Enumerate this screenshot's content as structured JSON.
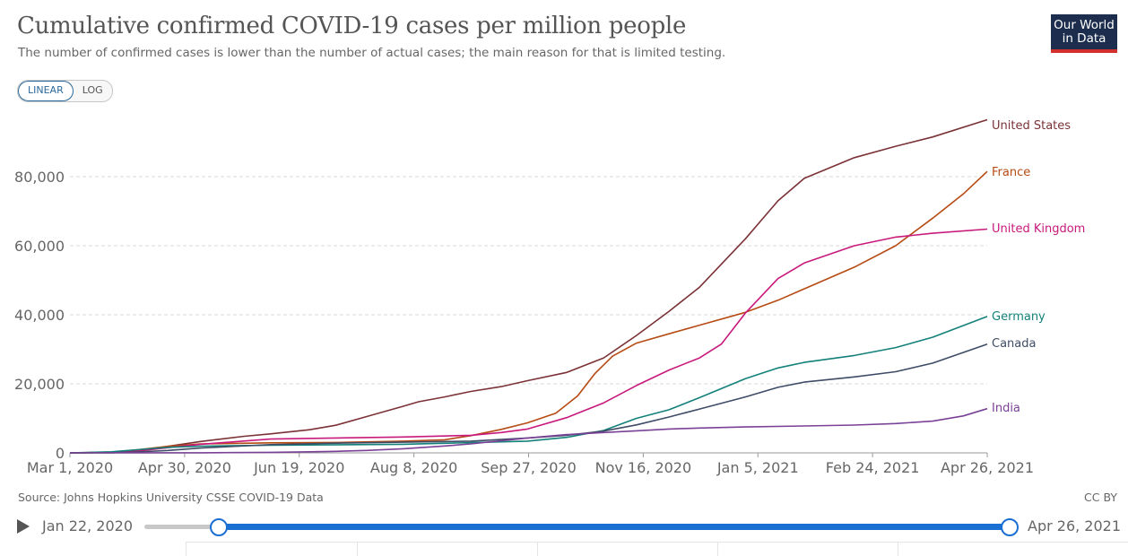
{
  "logo": {
    "line1": "Our World",
    "line2": "in Data"
  },
  "scale_toggle": {
    "linear_label": "LINEAR",
    "log_label": "LOG"
  },
  "source": "Source: Johns Hopkins University CSSE COVID-19 Data",
  "license": "CC BY",
  "timeline": {
    "start_label": "Jan 22, 2020",
    "end_label": "Apr 26, 2021"
  },
  "colors": {
    "United States": "#7b3236",
    "France": "#b64a13",
    "United Kingdom": "#c8197c",
    "Germany": "#13807a",
    "Canada": "#3e4c66",
    "India": "#7a4196",
    "grid": "#d9d9d9",
    "accent": "#1a6fd3"
  },
  "chart_data": {
    "type": "line",
    "title": "Cumulative confirmed COVID-19 cases per million people",
    "subtitle": "The number of confirmed cases is lower than the number of actual cases; the main reason for that is limited testing.",
    "x_tick_labels": [
      "Mar 1, 2020",
      "Apr 30, 2020",
      "Jun 19, 2020",
      "Aug 8, 2020",
      "Sep 27, 2020",
      "Nov 16, 2020",
      "Jan 5, 2021",
      "Feb 24, 2021",
      "Apr 26, 2021"
    ],
    "xlim": [
      "2020-03-01",
      "2021-04-26"
    ],
    "ylim": [
      0,
      100000
    ],
    "y_ticks": [
      0,
      20000,
      40000,
      60000,
      80000
    ],
    "y_tick_labels": [
      "0",
      "20,000",
      "40,000",
      "60,000",
      "80,000"
    ],
    "grid": true,
    "legend_placement": "right, labels at line ends",
    "series": [
      {
        "name": "United States",
        "x": [
          "2020-03-01",
          "2020-03-20",
          "2020-04-01",
          "2020-04-15",
          "2020-04-30",
          "2020-05-20",
          "2020-06-01",
          "2020-06-19",
          "2020-07-01",
          "2020-07-15",
          "2020-08-01",
          "2020-08-08",
          "2020-08-20",
          "2020-09-01",
          "2020-09-15",
          "2020-09-27",
          "2020-10-15",
          "2020-11-01",
          "2020-11-16",
          "2020-12-01",
          "2020-12-15",
          "2021-01-05",
          "2021-01-20",
          "2021-02-01",
          "2021-02-24",
          "2021-03-15",
          "2021-04-01",
          "2021-04-26"
        ],
        "y": [
          0,
          100,
          600,
          1900,
          3300,
          4800,
          5500,
          6700,
          8000,
          10500,
          13500,
          14800,
          16200,
          17800,
          19200,
          20900,
          23300,
          27500,
          34000,
          41000,
          48000,
          62000,
          73000,
          79500,
          85500,
          88800,
          91500,
          96500
        ]
      },
      {
        "name": "France",
        "x": [
          "2020-03-01",
          "2020-03-20",
          "2020-04-01",
          "2020-04-15",
          "2020-04-30",
          "2020-06-01",
          "2020-07-01",
          "2020-08-01",
          "2020-08-20",
          "2020-09-01",
          "2020-09-15",
          "2020-09-27",
          "2020-10-10",
          "2020-10-20",
          "2020-10-28",
          "2020-11-05",
          "2020-11-16",
          "2020-12-01",
          "2020-12-15",
          "2021-01-05",
          "2021-01-20",
          "2021-02-01",
          "2021-02-24",
          "2021-03-15",
          "2021-04-01",
          "2021-04-15",
          "2021-04-26"
        ],
        "y": [
          0,
          200,
          900,
          1900,
          2600,
          2900,
          3000,
          3400,
          3800,
          5000,
          6800,
          8700,
          11500,
          16500,
          23000,
          28000,
          31800,
          34500,
          37000,
          40700,
          44200,
          47500,
          53800,
          60000,
          68000,
          75000,
          81500
        ]
      },
      {
        "name": "United Kingdom",
        "x": [
          "2020-03-01",
          "2020-03-20",
          "2020-04-01",
          "2020-04-15",
          "2020-04-30",
          "2020-06-01",
          "2020-07-01",
          "2020-08-01",
          "2020-09-01",
          "2020-09-15",
          "2020-09-27",
          "2020-10-15",
          "2020-11-01",
          "2020-11-16",
          "2020-12-01",
          "2020-12-15",
          "2020-12-25",
          "2021-01-05",
          "2021-01-20",
          "2021-02-01",
          "2021-02-24",
          "2021-03-15",
          "2021-04-01",
          "2021-04-26"
        ],
        "y": [
          0,
          100,
          500,
          1500,
          2500,
          4000,
          4300,
          4600,
          5100,
          5900,
          6900,
          10200,
          14500,
          19500,
          24000,
          27500,
          31500,
          40500,
          50500,
          55000,
          60000,
          62500,
          63600,
          64800
        ]
      },
      {
        "name": "Germany",
        "x": [
          "2020-03-01",
          "2020-03-20",
          "2020-04-01",
          "2020-04-15",
          "2020-04-30",
          "2020-06-01",
          "2020-08-01",
          "2020-09-01",
          "2020-09-27",
          "2020-10-15",
          "2020-11-01",
          "2020-11-16",
          "2020-12-01",
          "2020-12-15",
          "2021-01-05",
          "2021-01-20",
          "2021-02-01",
          "2021-02-24",
          "2021-03-15",
          "2021-04-01",
          "2021-04-26"
        ],
        "y": [
          0,
          300,
          900,
          1600,
          1950,
          2200,
          2500,
          2950,
          3400,
          4500,
          6500,
          10000,
          12500,
          16000,
          21500,
          24600,
          26200,
          28200,
          30500,
          33500,
          39500
        ]
      },
      {
        "name": "Canada",
        "x": [
          "2020-03-01",
          "2020-03-20",
          "2020-04-01",
          "2020-04-15",
          "2020-04-30",
          "2020-06-01",
          "2020-07-01",
          "2020-08-01",
          "2020-09-01",
          "2020-09-27",
          "2020-10-15",
          "2020-11-01",
          "2020-11-16",
          "2020-12-01",
          "2020-12-15",
          "2021-01-05",
          "2021-01-20",
          "2021-02-01",
          "2021-02-24",
          "2021-03-15",
          "2021-04-01",
          "2021-04-26"
        ],
        "y": [
          0,
          30,
          250,
          700,
          1400,
          2400,
          2800,
          3100,
          3400,
          4300,
          5100,
          6300,
          8100,
          10400,
          12700,
          16200,
          19000,
          20500,
          22000,
          23500,
          26000,
          31500
        ]
      },
      {
        "name": "India",
        "x": [
          "2020-03-01",
          "2020-04-30",
          "2020-06-01",
          "2020-06-19",
          "2020-07-01",
          "2020-07-15",
          "2020-08-01",
          "2020-08-20",
          "2020-09-01",
          "2020-09-27",
          "2020-10-15",
          "2020-11-01",
          "2020-11-16",
          "2020-12-01",
          "2020-12-15",
          "2021-01-05",
          "2021-02-01",
          "2021-02-24",
          "2021-03-15",
          "2021-04-01",
          "2021-04-15",
          "2021-04-26"
        ],
        "y": [
          0,
          25,
          150,
          300,
          450,
          700,
          1200,
          2000,
          2600,
          4300,
          5300,
          5900,
          6400,
          6900,
          7200,
          7500,
          7800,
          8050,
          8500,
          9200,
          10700,
          12800
        ]
      }
    ]
  }
}
